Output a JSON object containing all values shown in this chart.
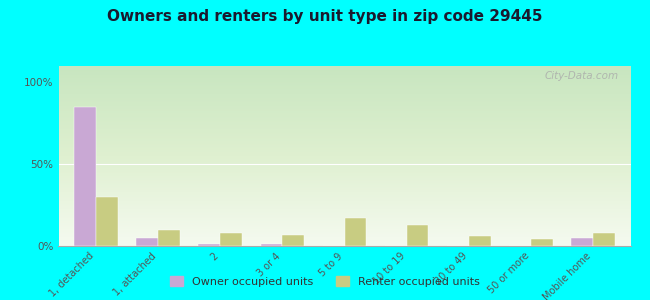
{
  "title": "Owners and renters by unit type in zip code 29445",
  "categories": [
    "1, detached",
    "1, attached",
    "2",
    "3 or 4",
    "5 to 9",
    "10 to 19",
    "20 to 49",
    "50 or more",
    "Mobile home"
  ],
  "owner_values": [
    85,
    5,
    1,
    1,
    0,
    0,
    0,
    0,
    5
  ],
  "renter_values": [
    30,
    10,
    8,
    7,
    17,
    13,
    6,
    4,
    8
  ],
  "owner_color": "#c9a8d4",
  "renter_color": "#c8cc82",
  "background_color": "#00ffff",
  "yticks": [
    0,
    50,
    100
  ],
  "ylim": [
    0,
    110
  ],
  "ylabel_labels": [
    "0%",
    "50%",
    "100%"
  ],
  "watermark": "City-Data.com",
  "title_fontsize": 11,
  "bar_width": 0.35
}
